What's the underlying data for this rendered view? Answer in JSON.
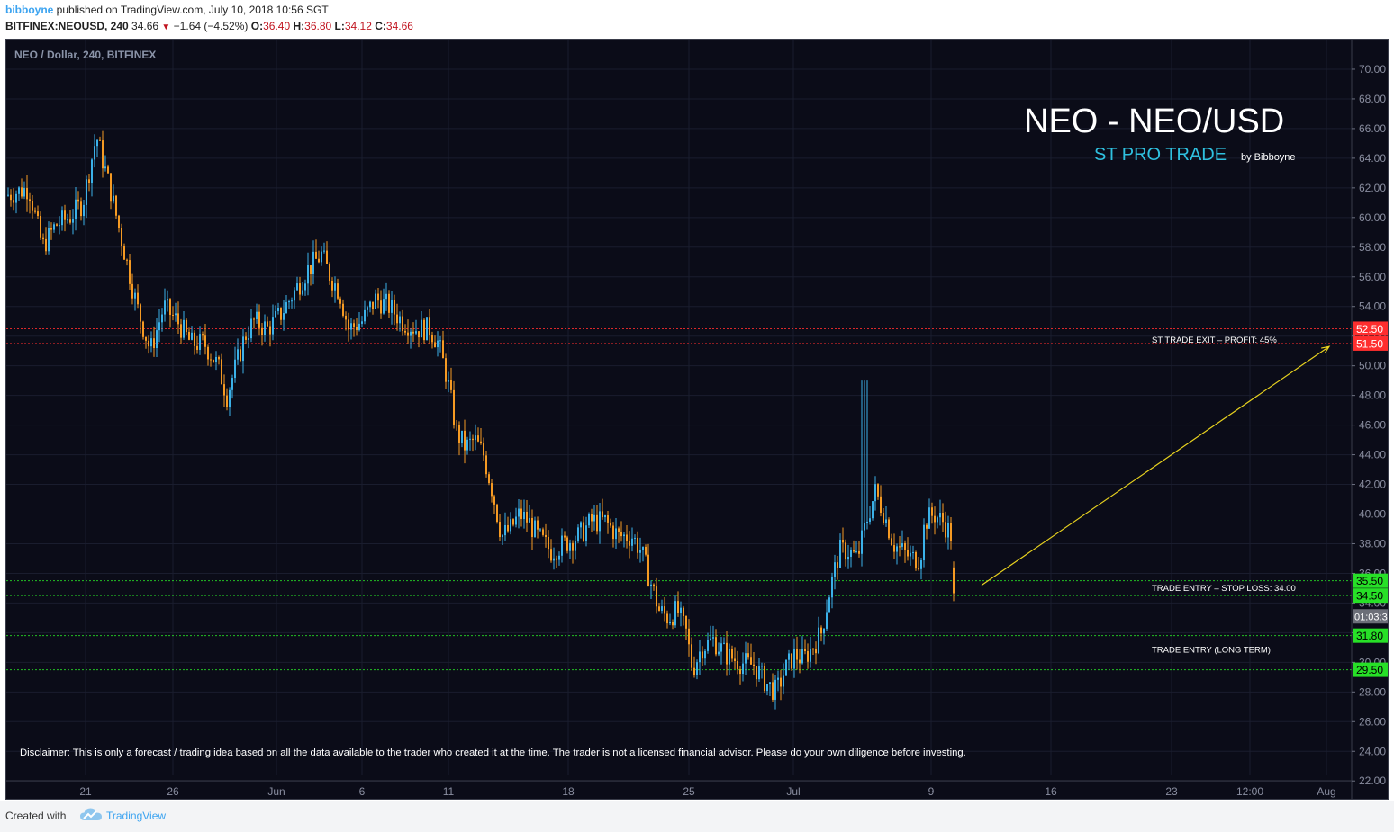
{
  "header": {
    "author": "bibboyne",
    "published_text": " published on TradingView.com, July 10, 2018 10:56 SGT",
    "symbol": "BITFINEX:NEOUSD, 240",
    "last": "34.66",
    "change": "−1.64 (−4.52%)",
    "open_label": "O:",
    "open": "36.40",
    "high_label": "H:",
    "high": "36.80",
    "low_label": "L:",
    "low": "34.12",
    "close_label": "C:",
    "close": "34.66"
  },
  "chart_data": {
    "type": "candlestick",
    "series_label": "NEO / Dollar, 240, BITFINEX",
    "title": "NEO - NEO/USD",
    "subtitle": "ST PRO TRADE",
    "byline": "by Bibboyne",
    "ylim": [
      20.8,
      72.0
    ],
    "y_ticks": [
      22,
      24,
      26,
      28,
      30,
      32,
      34,
      36,
      38,
      40,
      42,
      44,
      46,
      48,
      50,
      52,
      54,
      56,
      58,
      60,
      62,
      64,
      66,
      68,
      70
    ],
    "x_ticks": [
      "21",
      "26",
      "Jun",
      "6",
      "11",
      "18",
      "25",
      "Jul",
      "9",
      "16",
      "23",
      "12:00",
      "Aug"
    ],
    "close_path": [
      [
        0,
        61.5
      ],
      [
        25,
        62.0
      ],
      [
        40,
        58.0
      ],
      [
        55,
        59.5
      ],
      [
        70,
        60.0
      ],
      [
        85,
        61.0
      ],
      [
        100,
        65.5
      ],
      [
        115,
        62.0
      ],
      [
        130,
        58.0
      ],
      [
        145,
        54.0
      ],
      [
        160,
        51.0
      ],
      [
        175,
        54.0
      ],
      [
        190,
        53.0
      ],
      [
        205,
        51.5
      ],
      [
        220,
        51.5
      ],
      [
        235,
        50.0
      ],
      [
        245,
        48.0
      ],
      [
        255,
        50.0
      ],
      [
        265,
        52.0
      ],
      [
        275,
        53.0
      ],
      [
        290,
        52.5
      ],
      [
        305,
        53.5
      ],
      [
        320,
        55.0
      ],
      [
        335,
        56.5
      ],
      [
        350,
        57.5
      ],
      [
        360,
        56.0
      ],
      [
        370,
        55.0
      ],
      [
        380,
        52.5
      ],
      [
        395,
        53.0
      ],
      [
        410,
        54.5
      ],
      [
        425,
        54.0
      ],
      [
        440,
        53.0
      ],
      [
        455,
        52.5
      ],
      [
        470,
        52.5
      ],
      [
        480,
        51.5
      ],
      [
        490,
        49.0
      ],
      [
        500,
        45.5
      ],
      [
        510,
        44.5
      ],
      [
        520,
        45.0
      ],
      [
        530,
        44.0
      ],
      [
        540,
        41.5
      ],
      [
        550,
        38.5
      ],
      [
        560,
        39.0
      ],
      [
        570,
        40.0
      ],
      [
        580,
        39.5
      ],
      [
        590,
        38.5
      ],
      [
        605,
        37.5
      ],
      [
        620,
        38.0
      ],
      [
        635,
        38.5
      ],
      [
        650,
        39.5
      ],
      [
        665,
        39.5
      ],
      [
        680,
        38.5
      ],
      [
        695,
        38.5
      ],
      [
        705,
        37.5
      ],
      [
        715,
        35.5
      ],
      [
        725,
        33.5
      ],
      [
        735,
        33.0
      ],
      [
        745,
        33.5
      ],
      [
        755,
        32.0
      ],
      [
        762,
        29.5
      ],
      [
        772,
        31.0
      ],
      [
        785,
        31.5
      ],
      [
        800,
        30.5
      ],
      [
        815,
        30.0
      ],
      [
        830,
        29.8
      ],
      [
        845,
        28.5
      ],
      [
        855,
        28.0
      ],
      [
        865,
        29.5
      ],
      [
        875,
        30.5
      ],
      [
        885,
        30.2
      ],
      [
        895,
        31.0
      ],
      [
        905,
        32.0
      ],
      [
        915,
        35.0
      ],
      [
        925,
        37.5
      ],
      [
        935,
        37.5
      ],
      [
        945,
        37.0
      ],
      [
        955,
        39.5
      ],
      [
        965,
        41.5
      ],
      [
        975,
        40.0
      ],
      [
        985,
        38.0
      ],
      [
        995,
        37.5
      ],
      [
        1005,
        37.0
      ],
      [
        1015,
        37.0
      ],
      [
        1020,
        39.5
      ],
      [
        1030,
        40.0
      ],
      [
        1040,
        39.5
      ],
      [
        1050,
        38.5
      ],
      [
        1057,
        34.66
      ]
    ],
    "max_spike": 49.0,
    "levels": [
      {
        "value": 52.5,
        "label": "52.50",
        "color": "#ff2e2e"
      },
      {
        "value": 51.5,
        "label": "51.50",
        "color": "#ff2e2e"
      },
      {
        "value": 35.5,
        "label": "35.50",
        "color": "#27e027"
      },
      {
        "value": 34.5,
        "label": "34.50",
        "color": "#27e027"
      },
      {
        "value": 31.8,
        "label": "31.80",
        "color": "#27e027"
      },
      {
        "value": 29.5,
        "label": "29.50",
        "color": "#27e027"
      }
    ],
    "current_price": {
      "value": 33.1,
      "label": "01:03:3"
    },
    "annotations": [
      {
        "text": "ST TRADE EXIT – PROFIT: 45%",
        "value": 51.8
      },
      {
        "text": "TRADE ENTRY – STOP LOSS: 34.00",
        "value": 35.05
      },
      {
        "text": "TRADE ENTRY (LONG TERM)",
        "value": 30.9
      }
    ],
    "disclaimer": "Disclaimer: This is only a forecast / trading idea based on all the data available to the trader who created it at the time. The trader is not a licensed financial advisor. Please do your own diligence before investing.",
    "projection": {
      "from": 35.2,
      "to": 51.3
    },
    "colors": {
      "up": "#3bb1e8",
      "down": "#f59a23",
      "background": "#0b0c18",
      "grid": "#1a1d2e",
      "arrow": "#e8d21f"
    }
  },
  "footer": {
    "created_with": "Created with",
    "brand": "TradingView"
  }
}
